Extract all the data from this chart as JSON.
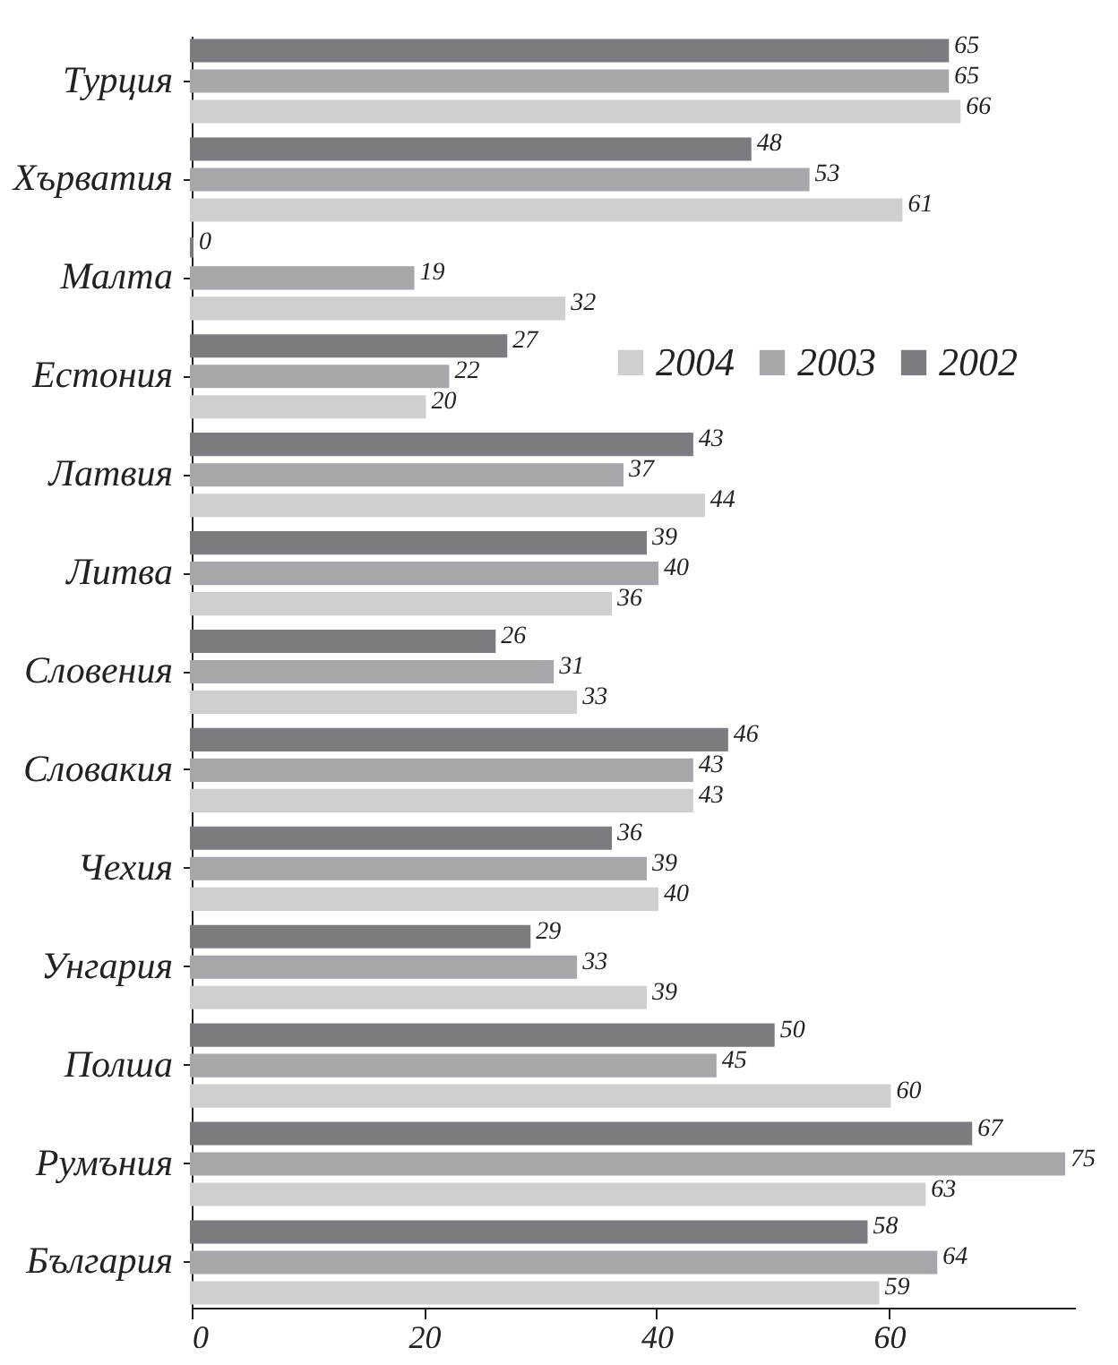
{
  "chart_data": {
    "type": "bar",
    "orientation": "horizontal",
    "categories": [
      "Турция",
      "Хърватия",
      "Малта",
      "Естония",
      "Латвия",
      "Литва",
      "Словения",
      "Словакия",
      "Чехия",
      "Унгария",
      "Полша",
      "Румъния",
      "България"
    ],
    "series": [
      {
        "name": "2002",
        "color": "#7b7b80",
        "values": [
          65,
          48,
          0,
          27,
          43,
          39,
          26,
          46,
          36,
          29,
          50,
          67,
          58
        ]
      },
      {
        "name": "2003",
        "color": "#a7a7ab",
        "values": [
          65,
          53,
          19,
          22,
          37,
          40,
          31,
          43,
          39,
          33,
          45,
          75,
          64
        ]
      },
      {
        "name": "2004",
        "color": "#cfcfd2",
        "values": [
          66,
          61,
          32,
          20,
          44,
          36,
          33,
          43,
          40,
          39,
          60,
          63,
          59
        ]
      }
    ],
    "xlim": [
      0,
      76
    ],
    "xticks": [
      0,
      20,
      40,
      60
    ],
    "data_labels": true,
    "grid": false,
    "legend": "top right"
  }
}
